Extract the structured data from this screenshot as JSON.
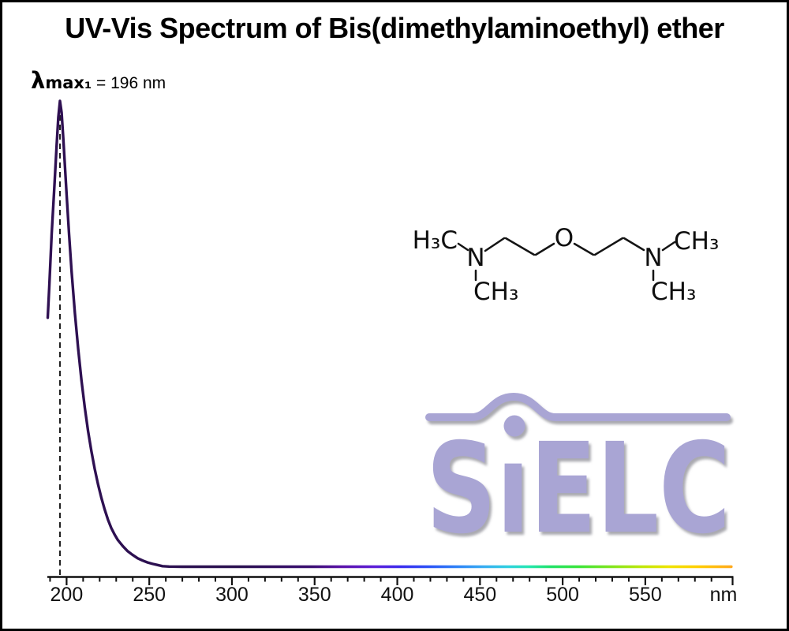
{
  "title": "UV-Vis Spectrum of Bis(dimethylaminoethyl) ether",
  "peak_annotation": {
    "lambda": "λ",
    "max_sub": "max₁",
    "value": " = 196 nm"
  },
  "axis": {
    "unit_label": "nm"
  },
  "chart_data": {
    "type": "line",
    "title": "UV-Vis Spectrum of Bis(dimethylaminoethyl) ether",
    "xlabel": "nm",
    "ylabel": "",
    "x_range": [
      188.5,
      602
    ],
    "x_ticks": [
      200,
      250,
      300,
      350,
      400,
      450,
      500,
      550
    ],
    "minor_ticks": {
      "start": 190,
      "end": 590,
      "step": 10
    },
    "grid": false,
    "legend": false,
    "lambda_max_nm": 196,
    "annotations": [
      "λmax₁ = 196 nm"
    ],
    "curve_color_dark": "#2f1052",
    "curve": [
      [
        188.6,
        0.535
      ],
      [
        189.5,
        0.6
      ],
      [
        191,
        0.715
      ],
      [
        192.5,
        0.81
      ],
      [
        194,
        0.905
      ],
      [
        195,
        0.965
      ],
      [
        196,
        1.0
      ],
      [
        197,
        0.975
      ],
      [
        198,
        0.92
      ],
      [
        199,
        0.86
      ],
      [
        200,
        0.8
      ],
      [
        201.5,
        0.715
      ],
      [
        203,
        0.635
      ],
      [
        205,
        0.545
      ],
      [
        207,
        0.468
      ],
      [
        209,
        0.4
      ],
      [
        211,
        0.342
      ],
      [
        213,
        0.292
      ],
      [
        215,
        0.249
      ],
      [
        217,
        0.211
      ],
      [
        219,
        0.178
      ],
      [
        221,
        0.149
      ],
      [
        223,
        0.124
      ],
      [
        225,
        0.102
      ],
      [
        227,
        0.084
      ],
      [
        229,
        0.07
      ],
      [
        231,
        0.058
      ],
      [
        234,
        0.045
      ],
      [
        237,
        0.034
      ],
      [
        240,
        0.026
      ],
      [
        243,
        0.019
      ],
      [
        246,
        0.014
      ],
      [
        249,
        0.01
      ],
      [
        252,
        0.007
      ],
      [
        255,
        0.0045
      ],
      [
        258,
        0.002
      ],
      [
        262,
        0.0012
      ],
      [
        270,
        0.0009
      ],
      [
        400,
        0.0009
      ],
      [
        500,
        0.0009
      ],
      [
        602,
        0.0009
      ]
    ],
    "spectrum_gradient": [
      [
        190,
        "#2f1052"
      ],
      [
        305,
        "#2a1150"
      ],
      [
        348,
        "#3b0f72"
      ],
      [
        366,
        "#5a13a8"
      ],
      [
        386,
        "#5d1fd8"
      ],
      [
        402,
        "#3b2cee"
      ],
      [
        419,
        "#2c52f7"
      ],
      [
        436,
        "#2e82f7"
      ],
      [
        452,
        "#38acf2"
      ],
      [
        467,
        "#2fd0e0"
      ],
      [
        479,
        "#25e6b2"
      ],
      [
        493,
        "#21e268"
      ],
      [
        510,
        "#3ce53a"
      ],
      [
        529,
        "#7fe51f"
      ],
      [
        548,
        "#bfe70a"
      ],
      [
        564,
        "#eee400"
      ],
      [
        581,
        "#ffcf00"
      ],
      [
        602,
        "#ffaa1e"
      ]
    ]
  },
  "molecule": {
    "name_hint": "Bis(dimethylaminoethyl) ether structure",
    "labels": {
      "h3c": "H₃C",
      "n1": "N",
      "ch3_n1_below": "CH₃",
      "o": "O",
      "n2": "N",
      "ch3_n2_top": "CH₃",
      "ch3_n2_below": "CH₃"
    }
  },
  "logo": {
    "text": "SiELC",
    "display": "SıELC",
    "color": "#a9a5d4"
  }
}
